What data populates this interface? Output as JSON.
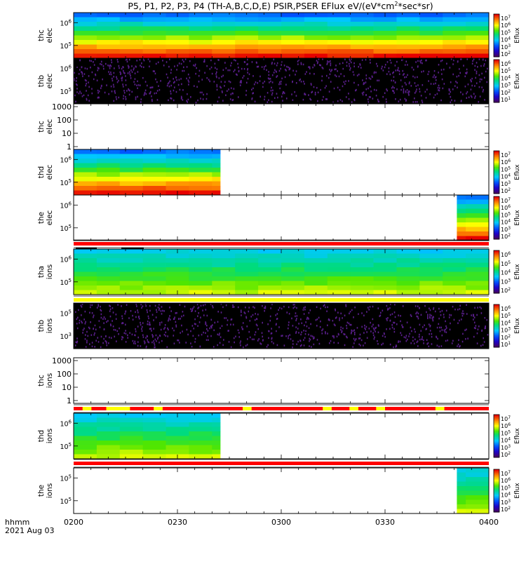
{
  "title_main": "P5, P1, P2, P3, P4 (TH-A,B,C,D,E) PSIR,PSER EFlux eV/(eV*cm",
  "title_sup": "2",
  "title_tail": "*sec*sr)",
  "time_label_line1": "hhmm",
  "time_label_line2": "2021 Aug 03",
  "colorbar_label": "Eflux",
  "colors": {
    "bar_red": "#ff0000",
    "bar_yellow": "#ffff00",
    "noise_dark": "#000000",
    "noise_purple": "#5a1f8c"
  },
  "chart_data": {
    "type": "heatmap",
    "x_axis": {
      "label": "hhmm",
      "date": "2021 Aug 03",
      "range": [
        "0200",
        "0400"
      ],
      "ticks": [
        "0200",
        "0230",
        "0300",
        "0330",
        "0400"
      ]
    },
    "panels": [
      {
        "name": "thc elec",
        "label_lines": [
          "thc",
          "elec"
        ],
        "type": "spectrogram",
        "y_ticks": [
          {
            "base": "10",
            "exp": "6"
          },
          {
            "base": "10",
            "exp": "5"
          }
        ],
        "coverage": [
          0.0,
          1.0
        ],
        "colorbar": {
          "label": "Eflux",
          "ticks": [
            "10^7",
            "10^6",
            "10^5",
            "10^4",
            "10^3",
            "10^2"
          ]
        }
      },
      {
        "name": "thb elec",
        "label_lines": [
          "thb",
          "elec"
        ],
        "type": "noise",
        "y_ticks": [
          {
            "base": "10",
            "exp": "6"
          },
          {
            "base": "10",
            "exp": "5"
          }
        ],
        "coverage": [
          0.0,
          1.0
        ],
        "colorbar": {
          "label": "Eflux",
          "ticks": [
            "10^6",
            "10^5",
            "10^4",
            "10^3",
            "10^2",
            "10^1"
          ]
        }
      },
      {
        "name": "thc elec",
        "label_lines": [
          "thc",
          "elec"
        ],
        "type": "empty",
        "y_ticks": [
          "1000",
          "100",
          "10",
          "1"
        ]
      },
      {
        "name": "thd elec",
        "label_lines": [
          "thd",
          "elec"
        ],
        "type": "spectrogram",
        "y_ticks": [
          {
            "base": "10",
            "exp": "6"
          },
          {
            "base": "10",
            "exp": "5"
          }
        ],
        "coverage": [
          0.0,
          0.353
        ],
        "colorbar": {
          "label": "Eflux",
          "ticks": [
            "10^7",
            "10^6",
            "10^5",
            "10^4",
            "10^3",
            "10^2"
          ]
        }
      },
      {
        "name": "the elec",
        "label_lines": [
          "the",
          "elec"
        ],
        "type": "spectrogram",
        "y_ticks": [
          {
            "base": "10",
            "exp": "6"
          },
          {
            "base": "10",
            "exp": "5"
          }
        ],
        "coverage": [
          0.923,
          1.0
        ],
        "colorbar": {
          "label": "Eflux",
          "ticks": [
            "10^7",
            "10^6",
            "10^5",
            "10^4",
            "10^3",
            "10^2"
          ]
        }
      },
      {
        "name": "tha ions",
        "label_lines": [
          "tha",
          "ions"
        ],
        "type": "spectrogram",
        "y_ticks": [
          {
            "base": "10",
            "exp": "6"
          },
          {
            "base": "10",
            "exp": "5"
          }
        ],
        "coverage": [
          0.0,
          1.0
        ],
        "colorbar": {
          "label": "Eflux",
          "ticks": [
            "10^6",
            "10^5",
            "10^4",
            "10^3",
            "10^2"
          ]
        }
      },
      {
        "name": "thb ions",
        "label_lines": [
          "thb",
          "ions"
        ],
        "type": "noise",
        "y_ticks": [
          {
            "base": "10",
            "exp": "5"
          },
          {
            "base": "10",
            "exp": "3"
          }
        ],
        "coverage": [
          0.0,
          1.0
        ],
        "colorbar": {
          "label": "Eflux",
          "ticks": [
            "10^6",
            "10^5",
            "10^4",
            "10^3",
            "10^2",
            "10^1"
          ]
        }
      },
      {
        "name": "thc ions",
        "label_lines": [
          "thc",
          "ions"
        ],
        "type": "empty",
        "y_ticks": [
          "1000",
          "100",
          "10",
          "1"
        ]
      },
      {
        "name": "thd ions",
        "label_lines": [
          "thd",
          "ions"
        ],
        "type": "spectrogram",
        "y_ticks": [
          {
            "base": "10",
            "exp": "6"
          },
          {
            "base": "10",
            "exp": "5"
          }
        ],
        "coverage": [
          0.0,
          0.353
        ],
        "colorbar": {
          "label": "Eflux",
          "ticks": [
            "10^7",
            "10^6",
            "10^5",
            "10^4",
            "10^3",
            "10^2"
          ]
        }
      },
      {
        "name": "the ions",
        "label_lines": [
          "the",
          "ions"
        ],
        "type": "spectrogram",
        "y_ticks": [
          {
            "base": "10",
            "exp": "5"
          },
          {
            "base": "10",
            "exp": "5"
          }
        ],
        "coverage": [
          0.923,
          1.0
        ],
        "colorbar": {
          "label": "Eflux",
          "ticks": [
            "10^7",
            "10^6",
            "10^5",
            "10^4",
            "10^3",
            "10^2"
          ]
        }
      }
    ],
    "status_bars": [
      {
        "name": "bar after the elec",
        "color": "red"
      },
      {
        "name": "bar after tha ions",
        "color": "yellow"
      },
      {
        "name": "bar after thc ions",
        "color": "red",
        "yellow_gaps": [
          [
            0.03,
            0.06
          ],
          [
            0.11,
            0.19
          ],
          [
            0.27,
            0.3
          ],
          [
            0.57,
            0.6
          ],
          [
            0.84,
            0.87
          ],
          [
            0.93,
            0.96
          ],
          [
            1.02,
            1.05
          ],
          [
            1.22,
            1.25
          ]
        ]
      },
      {
        "name": "bar after thd ions",
        "color": "red"
      }
    ]
  }
}
